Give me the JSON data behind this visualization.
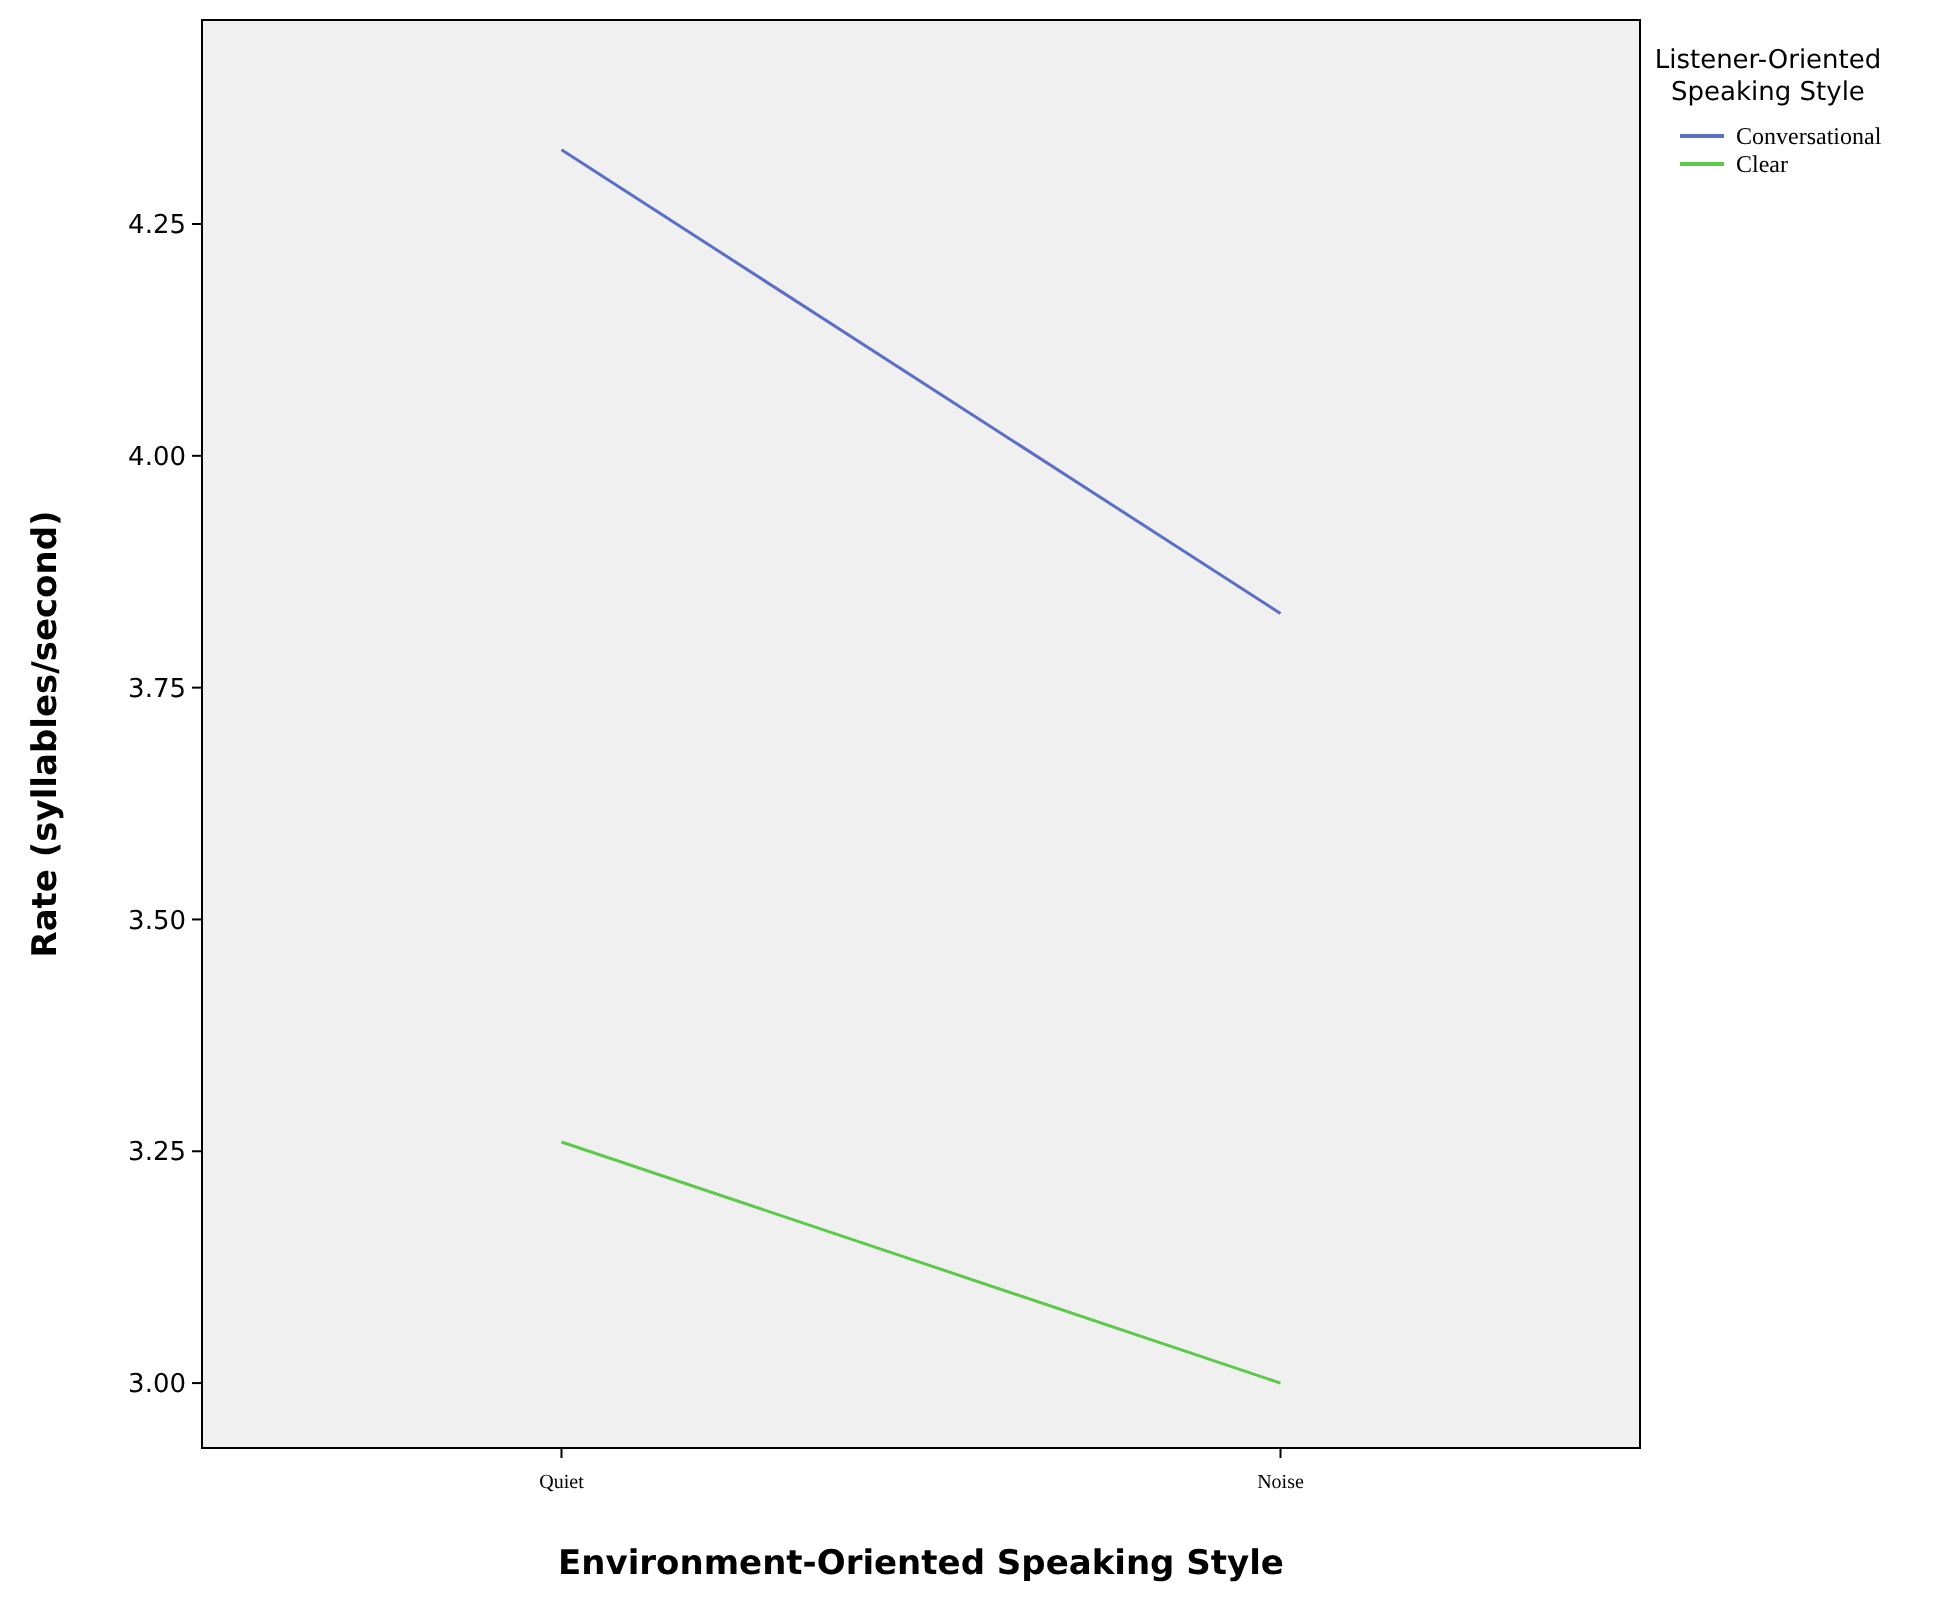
{
  "chart_data": {
    "type": "line",
    "xlabel": "Environment-Oriented Speaking Style",
    "ylabel": "Rate (syllables/second)",
    "legend_title": "Listener-Oriented Speaking Style",
    "categories": [
      "Quiet",
      "Noise"
    ],
    "series": [
      {
        "name": "Conversational",
        "color": "#5b6fc7",
        "values": [
          4.33,
          3.83
        ]
      },
      {
        "name": "Clear",
        "color": "#5dc94a",
        "values": [
          3.26,
          3.0
        ]
      }
    ],
    "ylim": [
      2.93,
      4.47
    ],
    "yticks": [
      {
        "value": 3,
        "label": "3.00"
      },
      {
        "value": 3.25,
        "label": "3.25"
      },
      {
        "value": 3.5,
        "label": "3.50"
      },
      {
        "value": 3.75,
        "label": "3.75"
      },
      {
        "value": 4,
        "label": "4.00"
      },
      {
        "value": 4.25,
        "label": "4.25"
      }
    ],
    "grid": false,
    "legend": "top right",
    "marker": "none",
    "line_style": "solid"
  }
}
